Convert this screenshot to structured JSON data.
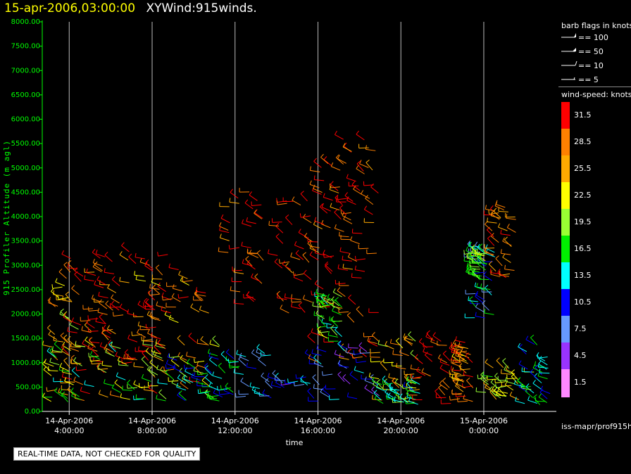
{
  "header": {
    "timestamp": "15-apr-2006,03:00:00",
    "product": "XYWind:915winds."
  },
  "legend": {
    "barb_title": "barb flags in knots",
    "barbs": [
      {
        "label": "== 100"
      },
      {
        "label": "== 50"
      },
      {
        "label": "== 10"
      },
      {
        "label": "== 5"
      }
    ],
    "speed_title": "wind-speed: knots",
    "speed_bins": [
      {
        "label": "31.5",
        "color": "#ff0000"
      },
      {
        "label": "28.5",
        "color": "#ff8000"
      },
      {
        "label": "25.5",
        "color": "#ffaa00"
      },
      {
        "label": "22.5",
        "color": "#ffff00"
      },
      {
        "label": "19.5",
        "color": "#99ff33"
      },
      {
        "label": "16.5",
        "color": "#00ee00"
      },
      {
        "label": "13.5",
        "color": "#00ffff"
      },
      {
        "label": "10.5",
        "color": "#0000ff"
      },
      {
        "label": "7.5",
        "color": "#6699ff"
      },
      {
        "label": "4.5",
        "color": "#9933ff"
      },
      {
        "label": "1.5",
        "color": "#ff88ff"
      }
    ]
  },
  "footer_source": "iss-mapr/prof915h",
  "notice": "REAL-TIME DATA, NOT CHECKED FOR QUALITY",
  "chart_data": {
    "type": "scatter",
    "xlabel": "time",
    "ylabel": "915 Profiler Altitude (m agl)",
    "ylim": [
      0,
      8000
    ],
    "yticks": [
      "0.00",
      "500.00",
      "1000.00",
      "1500.00",
      "2000.00",
      "2500.00",
      "3000.00",
      "3500.00",
      "4000.00",
      "4500.00",
      "5000.00",
      "5500.00",
      "6000.00",
      "6500.00",
      "7000.00",
      "7500.00",
      "8000.00"
    ],
    "xlim_hours": [
      2.7,
      27.5
    ],
    "xticks": [
      {
        "hour": 4,
        "line1": "14-Apr-2006",
        "line2": "4:00:00"
      },
      {
        "hour": 8,
        "line1": "14-Apr-2006",
        "line2": "8:00:00"
      },
      {
        "hour": 12,
        "line1": "14-Apr-2006",
        "line2": "12:00:00"
      },
      {
        "hour": 16,
        "line1": "14-Apr-2006",
        "line2": "16:00:00"
      },
      {
        "hour": 20,
        "line1": "14-Apr-2006",
        "line2": "20:00:00"
      },
      {
        "hour": 24,
        "line1": "15-Apr-2006",
        "line2": "0:00:00"
      }
    ],
    "grid": "vertical",
    "legend": "right",
    "clusters": [
      {
        "t0": 3.0,
        "t1": 4.6,
        "h0": 100,
        "h1": 2700,
        "speed": 24
      },
      {
        "t0": 3.8,
        "t1": 6.5,
        "h0": 200,
        "h1": 3200,
        "speed": 29
      },
      {
        "t0": 5.0,
        "t1": 8.8,
        "h0": 1000,
        "h1": 3300,
        "speed": 31
      },
      {
        "t0": 7.5,
        "t1": 10.8,
        "h0": 300,
        "h1": 3000,
        "speed": 27
      },
      {
        "t0": 3.0,
        "t1": 11.5,
        "h0": 150,
        "h1": 1400,
        "speed": 18
      },
      {
        "t0": 9.0,
        "t1": 12.5,
        "h0": 200,
        "h1": 1100,
        "speed": 14
      },
      {
        "t0": 11.5,
        "t1": 13.4,
        "h0": 2200,
        "h1": 4600,
        "speed": 30
      },
      {
        "t0": 12.0,
        "t1": 15.8,
        "h0": 200,
        "h1": 1300,
        "speed": 10
      },
      {
        "t0": 14.0,
        "t1": 15.8,
        "h0": 2000,
        "h1": 4400,
        "speed": 31
      },
      {
        "t0": 15.8,
        "t1": 19.0,
        "h0": 1000,
        "h1": 5600,
        "speed": 31
      },
      {
        "t0": 15.8,
        "t1": 19.0,
        "h0": 200,
        "h1": 1300,
        "speed": 9
      },
      {
        "t0": 16.2,
        "t1": 17.2,
        "h0": 1400,
        "h1": 2400,
        "speed": 17
      },
      {
        "t0": 18.8,
        "t1": 21.0,
        "h0": 100,
        "h1": 1600,
        "speed": 24
      },
      {
        "t0": 19.0,
        "t1": 21.0,
        "h0": 100,
        "h1": 600,
        "speed": 15
      },
      {
        "t0": 21.0,
        "t1": 23.2,
        "h0": 100,
        "h1": 1500,
        "speed": 31
      },
      {
        "t0": 22.8,
        "t1": 23.5,
        "h0": 200,
        "h1": 1300,
        "speed": 27
      },
      {
        "t0": 23.5,
        "t1": 24.6,
        "h0": 1900,
        "h1": 3400,
        "speed": 12
      },
      {
        "t0": 23.5,
        "t1": 24.2,
        "h0": 2700,
        "h1": 3300,
        "speed": 19
      },
      {
        "t0": 24.4,
        "t1": 25.6,
        "h0": 2700,
        "h1": 4200,
        "speed": 28
      },
      {
        "t0": 24.1,
        "t1": 25.7,
        "h0": 200,
        "h1": 900,
        "speed": 22
      },
      {
        "t0": 25.9,
        "t1": 27.2,
        "h0": 100,
        "h1": 1400,
        "speed": 14
      }
    ]
  }
}
